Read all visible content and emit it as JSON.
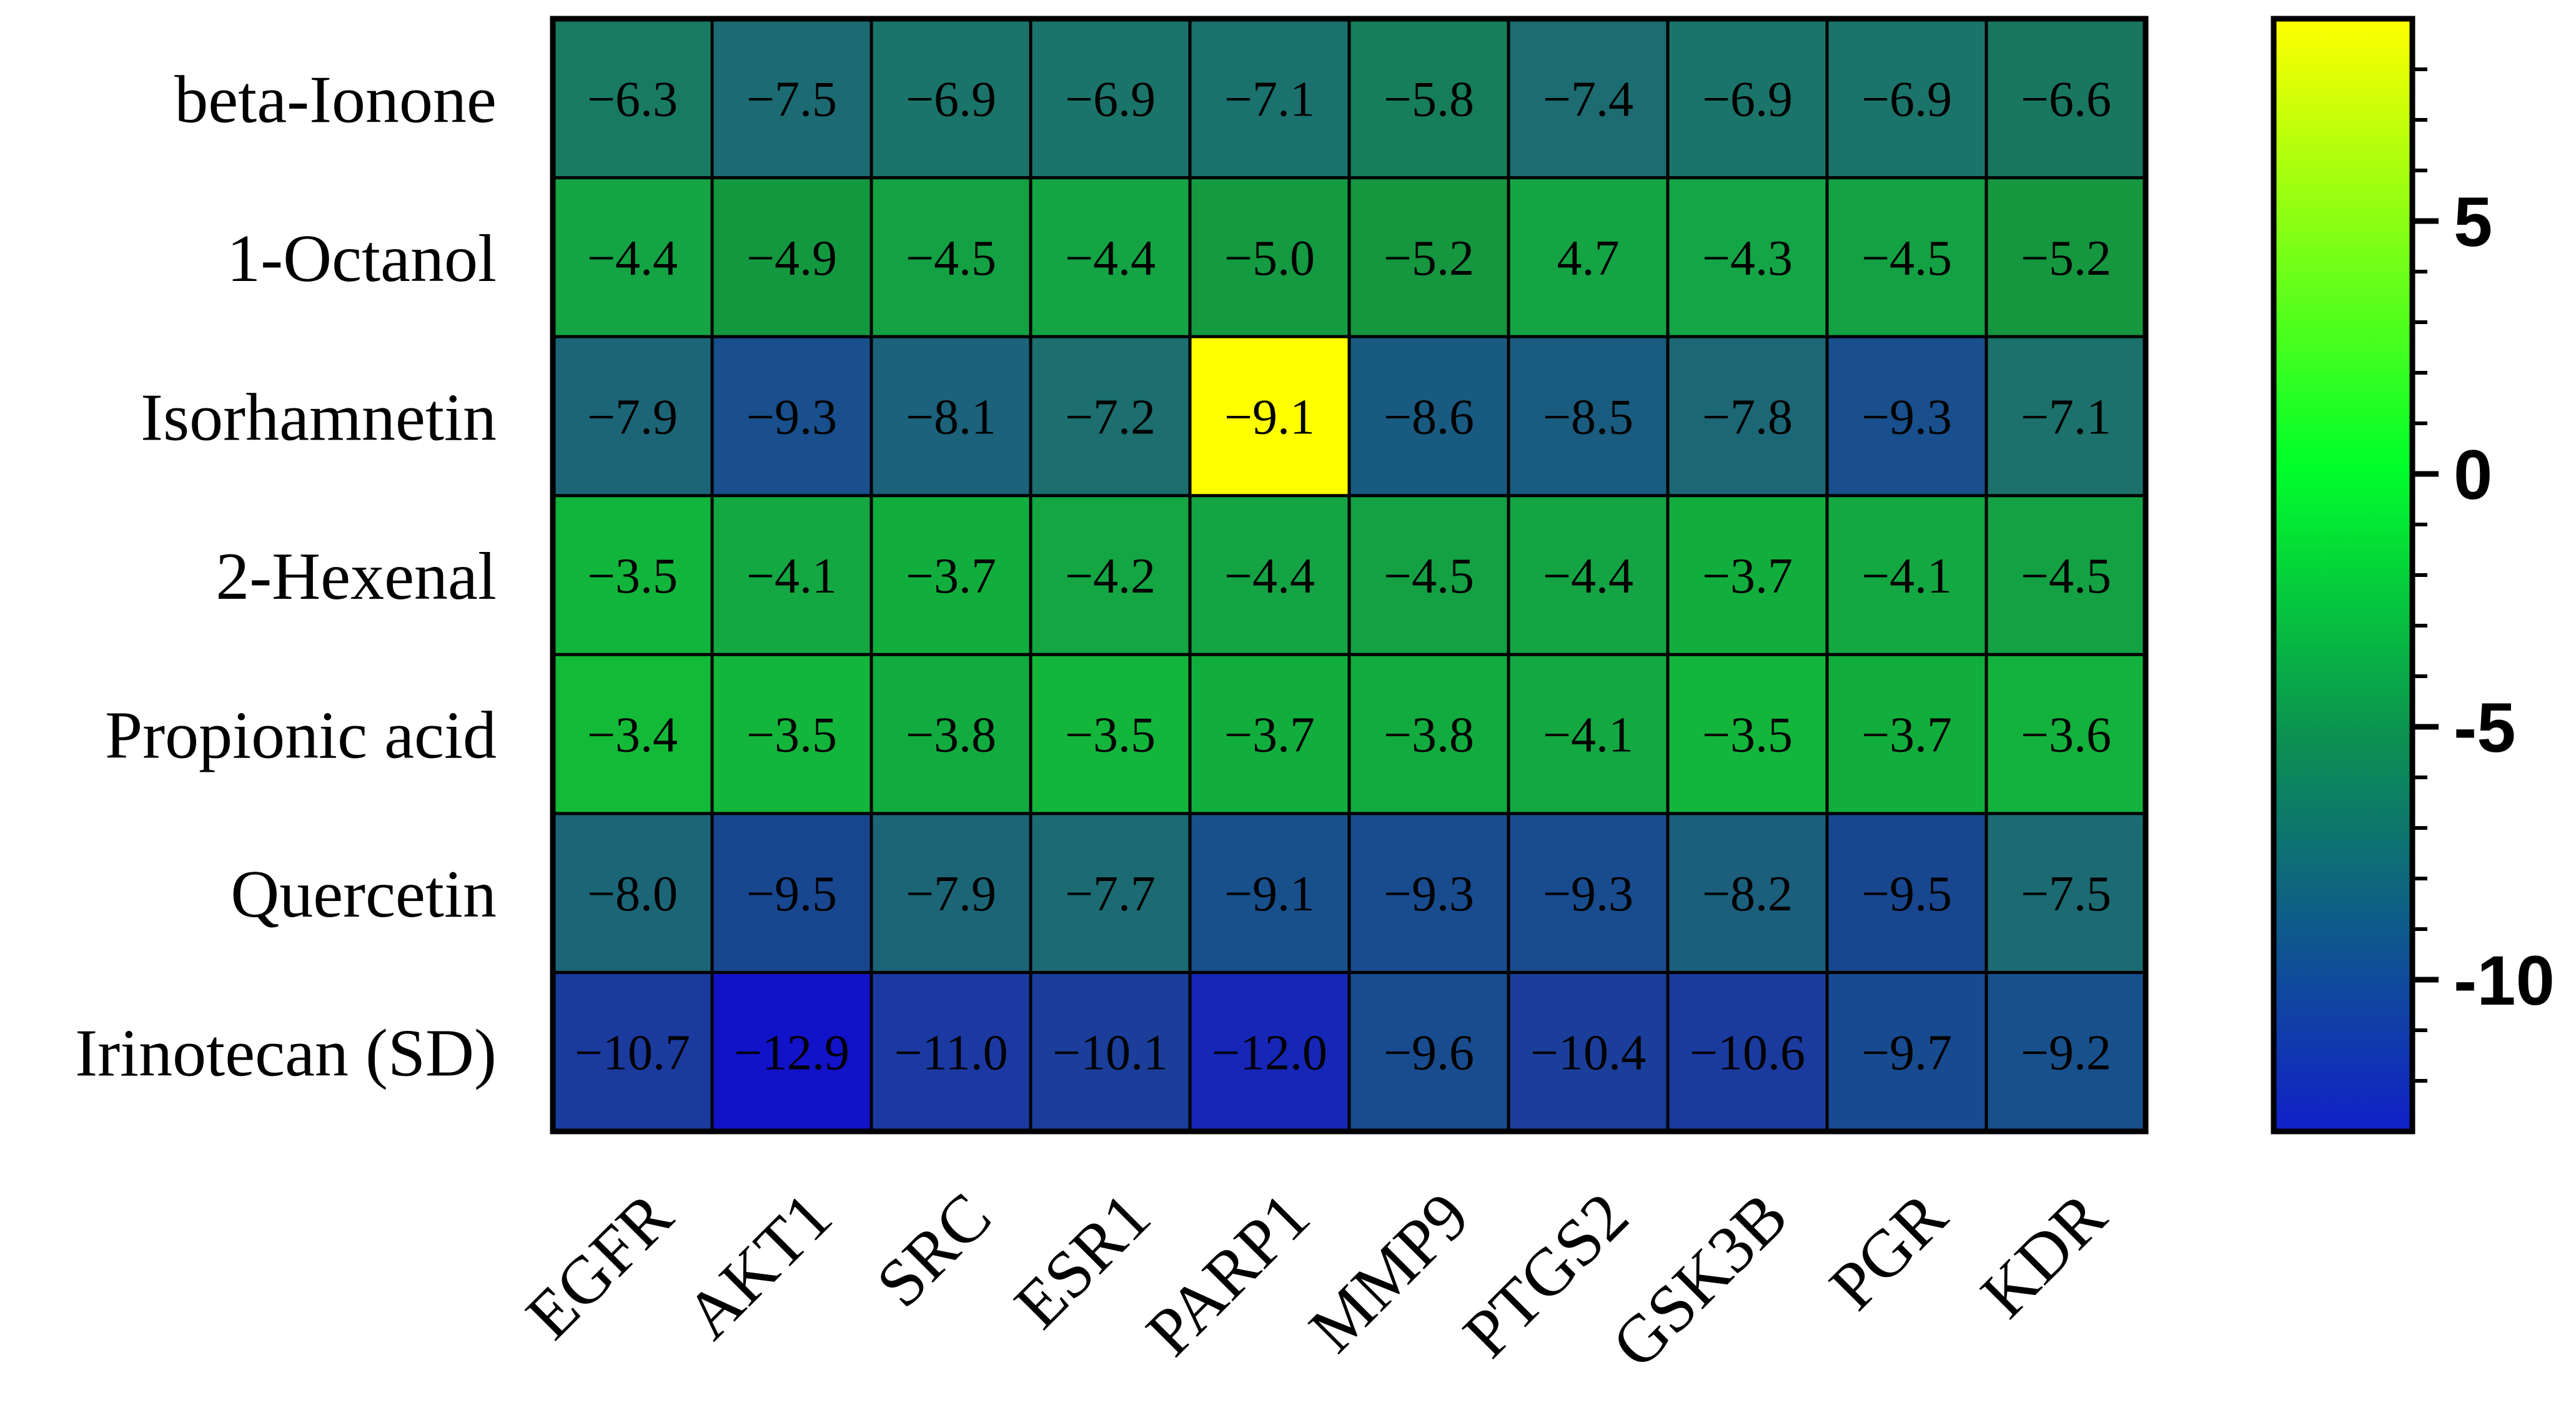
{
  "chart_data": {
    "type": "heatmap",
    "rows": [
      "beta-Ionone",
      "1-Octanol",
      "Isorhamnetin",
      "2-Hexenal",
      "Propionic acid",
      "Quercetin",
      "Irinotecan (SD)"
    ],
    "columns": [
      "EGFR",
      "AKT1",
      "SRC",
      "ESR1",
      "PARP1",
      "MMP9",
      "PTGS2",
      "GSK3B",
      "PGR",
      "KDR"
    ],
    "values": [
      [
        -6.3,
        -7.5,
        -6.9,
        -6.9,
        -7.1,
        -5.8,
        -7.4,
        -6.9,
        -6.9,
        -6.6
      ],
      [
        -4.4,
        -4.9,
        -4.5,
        -4.4,
        -5.0,
        -5.2,
        4.7,
        -4.3,
        -4.5,
        -5.2
      ],
      [
        -7.9,
        -9.3,
        -8.1,
        -7.2,
        -9.1,
        -8.6,
        -8.5,
        -7.8,
        -9.3,
        -7.1
      ],
      [
        -3.5,
        -4.1,
        -3.7,
        -4.2,
        -4.4,
        -4.5,
        -4.4,
        -3.7,
        -4.1,
        -4.5
      ],
      [
        -3.4,
        -3.5,
        -3.8,
        -3.5,
        -3.7,
        -3.8,
        -4.1,
        -3.5,
        -3.7,
        -3.6
      ],
      [
        -8.0,
        -9.5,
        -7.9,
        -7.7,
        -9.1,
        -9.3,
        -9.3,
        -8.2,
        -9.5,
        -7.5
      ],
      [
        -10.7,
        -12.9,
        -11.0,
        -10.1,
        -12.0,
        -9.6,
        -10.4,
        -10.6,
        -9.7,
        -9.2
      ]
    ],
    "labels": [
      [
        "−6.3",
        "−7.5",
        "−6.9",
        "−6.9",
        "−7.1",
        "−5.8",
        "−7.4",
        "−6.9",
        "−6.9",
        "−6.6"
      ],
      [
        "−4.4",
        "−4.9",
        "−4.5",
        "−4.4",
        "−5.0",
        "−5.2",
        "4.7",
        "−4.3",
        "−4.5",
        "−5.2"
      ],
      [
        "−7.9",
        "−9.3",
        "−8.1",
        "−7.2",
        "−9.1",
        "−8.6",
        "−8.5",
        "−7.8",
        "−9.3",
        "−7.1"
      ],
      [
        "−3.5",
        "−4.1",
        "−3.7",
        "−4.2",
        "−4.4",
        "−4.5",
        "−4.4",
        "−3.7",
        "−4.1",
        "−4.5"
      ],
      [
        "−3.4",
        "−3.5",
        "−3.8",
        "−3.5",
        "−3.7",
        "−3.8",
        "−4.1",
        "−3.5",
        "−3.7",
        "−3.6"
      ],
      [
        "−8.0",
        "−9.5",
        "−7.9",
        "−7.7",
        "−9.1",
        "−9.3",
        "−9.3",
        "−8.2",
        "−9.5",
        "−7.5"
      ],
      [
        "−10.7",
        "−12.9",
        "−11.0",
        "−10.1",
        "−12.0",
        "−9.6",
        "−10.4",
        "−10.6",
        "−9.7",
        "−9.2"
      ]
    ],
    "cell_colors": [
      [
        "#197a62",
        "#1c6b73",
        "#1b7469",
        "#1b7469",
        "#1b716d",
        "#177e5b",
        "#1c6c71",
        "#1b7469",
        "#1b7469",
        "#19775f"
      ],
      [
        "#14a444",
        "#14983f",
        "#13a143",
        "#14a444",
        "#149a41",
        "#15963f",
        "#14a444",
        "#14a646",
        "#13a143",
        "#15963f"
      ],
      [
        "#1c6577",
        "#184f8c",
        "#1b627a",
        "#1c6e6f",
        "#ffff00",
        "#195a81",
        "#1a5c80",
        "#1c6775",
        "#184f8c",
        "#1c716c"
      ],
      [
        "#12b53b",
        "#13a842",
        "#12ae3d",
        "#13a643",
        "#14a444",
        "#13a143",
        "#14a444",
        "#12ae3d",
        "#13a842",
        "#13a143"
      ],
      [
        "#13ba37",
        "#13b63b",
        "#12ab3f",
        "#13b63b",
        "#12ae3d",
        "#12ab3f",
        "#13a842",
        "#13b63b",
        "#12ae3d",
        "#13b23c"
      ],
      [
        "#1c6577",
        "#184790",
        "#1c6577",
        "#1c6b73",
        "#18508b",
        "#184c8e",
        "#184c8e",
        "#1b5f7c",
        "#184790",
        "#1c6b73"
      ],
      [
        "#1b3a9e",
        "#1212c8",
        "#1b39a1",
        "#1a3e99",
        "#1626b7",
        "#184c8e",
        "#1a3e99",
        "#1b3a9e",
        "#184a8f",
        "#18508b"
      ]
    ],
    "colorbar": {
      "range": [
        -13,
        9
      ],
      "ticks": [
        5,
        0,
        -5,
        -10
      ],
      "tick_labels": [
        "5",
        "0",
        "-5",
        "-10"
      ],
      "colors": [
        "#ffff00",
        "#00ff2a",
        "#0c8f52",
        "#1120c9"
      ]
    },
    "title": "",
    "xlabel": "",
    "ylabel": ""
  }
}
